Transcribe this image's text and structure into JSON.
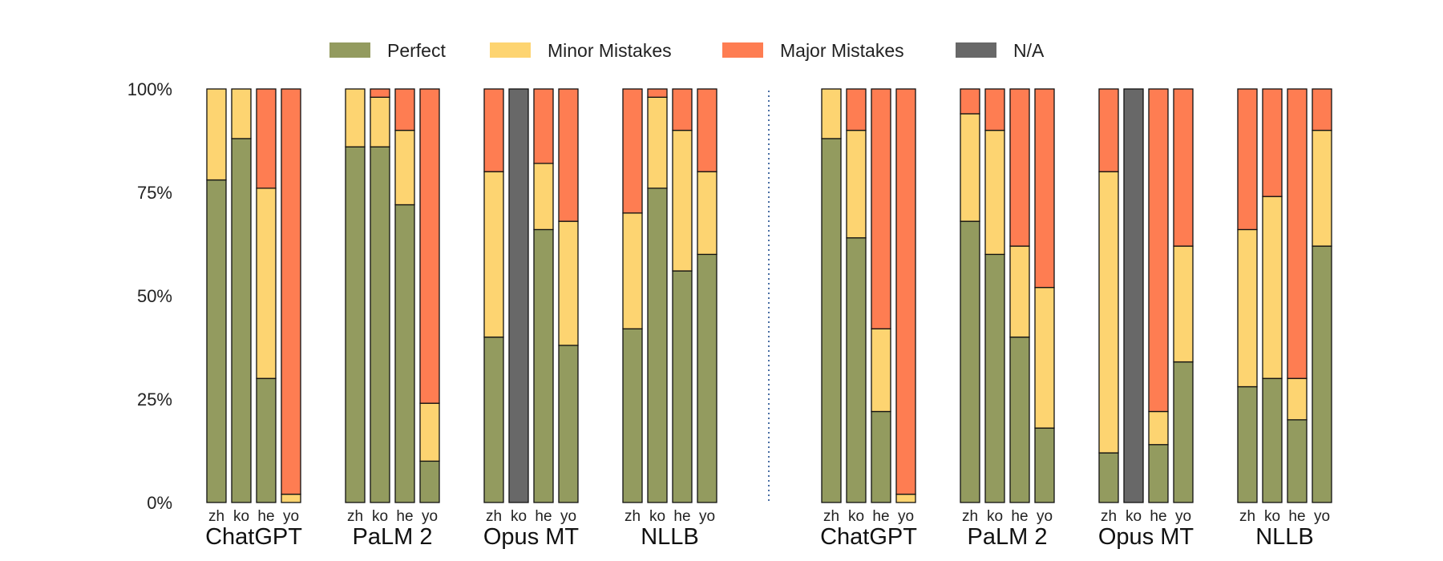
{
  "chart_data": {
    "type": "bar",
    "stacked": true,
    "y_axis": {
      "ylim": [
        0,
        100
      ],
      "ticks": [
        0,
        25,
        50,
        75,
        100
      ],
      "tick_labels": [
        "0%",
        "25%",
        "50%",
        "75%",
        "100%"
      ]
    },
    "grid": false,
    "legend_placement": "top-center",
    "categories": [
      {
        "key": "perfect",
        "name": "Perfect",
        "color": "#939b5f"
      },
      {
        "key": "minor",
        "name": "Minor Mistakes",
        "color": "#fdd471"
      },
      {
        "key": "major",
        "name": "Major Mistakes",
        "color": "#fe7d52"
      },
      {
        "key": "na",
        "name": "N/A",
        "color": "#686868"
      }
    ],
    "panels": [
      {
        "groups": [
          {
            "model": "ChatGPT",
            "bars": [
              {
                "lang": "zh",
                "perfect": 78,
                "minor": 22,
                "major": 0,
                "na": 0
              },
              {
                "lang": "ko",
                "perfect": 88,
                "minor": 12,
                "major": 0,
                "na": 0
              },
              {
                "lang": "he",
                "perfect": 30,
                "minor": 46,
                "major": 24,
                "na": 0
              },
              {
                "lang": "yo",
                "perfect": 0,
                "minor": 2,
                "major": 98,
                "na": 0
              }
            ]
          },
          {
            "model": "PaLM 2",
            "bars": [
              {
                "lang": "zh",
                "perfect": 86,
                "minor": 14,
                "major": 0,
                "na": 0
              },
              {
                "lang": "ko",
                "perfect": 86,
                "minor": 12,
                "major": 2,
                "na": 0
              },
              {
                "lang": "he",
                "perfect": 72,
                "minor": 18,
                "major": 10,
                "na": 0
              },
              {
                "lang": "yo",
                "perfect": 10,
                "minor": 14,
                "major": 76,
                "na": 0
              }
            ]
          },
          {
            "model": "Opus MT",
            "bars": [
              {
                "lang": "zh",
                "perfect": 40,
                "minor": 40,
                "major": 20,
                "na": 0
              },
              {
                "lang": "ko",
                "perfect": 0,
                "minor": 0,
                "major": 0,
                "na": 100
              },
              {
                "lang": "he",
                "perfect": 66,
                "minor": 16,
                "major": 18,
                "na": 0
              },
              {
                "lang": "yo",
                "perfect": 38,
                "minor": 30,
                "major": 32,
                "na": 0
              }
            ]
          },
          {
            "model": "NLLB",
            "bars": [
              {
                "lang": "zh",
                "perfect": 42,
                "minor": 28,
                "major": 30,
                "na": 0
              },
              {
                "lang": "ko",
                "perfect": 76,
                "minor": 22,
                "major": 2,
                "na": 0
              },
              {
                "lang": "he",
                "perfect": 56,
                "minor": 34,
                "major": 10,
                "na": 0
              },
              {
                "lang": "yo",
                "perfect": 60,
                "minor": 20,
                "major": 20,
                "na": 0
              }
            ]
          }
        ]
      },
      {
        "groups": [
          {
            "model": "ChatGPT",
            "bars": [
              {
                "lang": "zh",
                "perfect": 88,
                "minor": 12,
                "major": 0,
                "na": 0
              },
              {
                "lang": "ko",
                "perfect": 64,
                "minor": 26,
                "major": 10,
                "na": 0
              },
              {
                "lang": "he",
                "perfect": 22,
                "minor": 20,
                "major": 58,
                "na": 0
              },
              {
                "lang": "yo",
                "perfect": 0,
                "minor": 2,
                "major": 98,
                "na": 0
              }
            ]
          },
          {
            "model": "PaLM 2",
            "bars": [
              {
                "lang": "zh",
                "perfect": 68,
                "minor": 26,
                "major": 6,
                "na": 0
              },
              {
                "lang": "ko",
                "perfect": 60,
                "minor": 30,
                "major": 10,
                "na": 0
              },
              {
                "lang": "he",
                "perfect": 40,
                "minor": 22,
                "major": 38,
                "na": 0
              },
              {
                "lang": "yo",
                "perfect": 18,
                "minor": 34,
                "major": 48,
                "na": 0
              }
            ]
          },
          {
            "model": "Opus MT",
            "bars": [
              {
                "lang": "zh",
                "perfect": 12,
                "minor": 68,
                "major": 20,
                "na": 0
              },
              {
                "lang": "ko",
                "perfect": 0,
                "minor": 0,
                "major": 0,
                "na": 100
              },
              {
                "lang": "he",
                "perfect": 14,
                "minor": 8,
                "major": 78,
                "na": 0
              },
              {
                "lang": "yo",
                "perfect": 34,
                "minor": 28,
                "major": 38,
                "na": 0
              }
            ]
          },
          {
            "model": "NLLB",
            "bars": [
              {
                "lang": "zh",
                "perfect": 28,
                "minor": 38,
                "major": 34,
                "na": 0
              },
              {
                "lang": "ko",
                "perfect": 30,
                "minor": 44,
                "major": 26,
                "na": 0
              },
              {
                "lang": "he",
                "perfect": 20,
                "minor": 10,
                "major": 70,
                "na": 0
              },
              {
                "lang": "yo",
                "perfect": 62,
                "minor": 28,
                "major": 10,
                "na": 0
              }
            ]
          }
        ]
      }
    ]
  }
}
